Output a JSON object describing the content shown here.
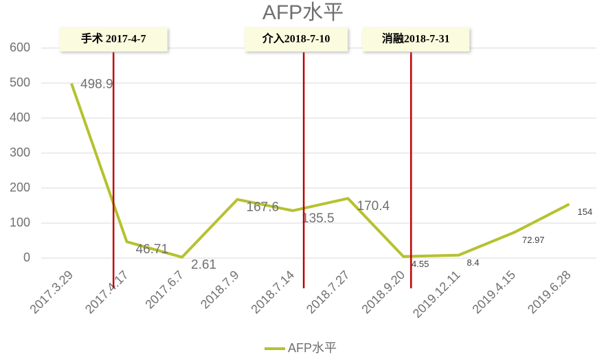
{
  "chart_data": {
    "type": "line",
    "title": "AFP水平",
    "categories": [
      "2017.3.29",
      "2017.4.17",
      "2017.6.7",
      "2018.7.9",
      "2018.7.14",
      "2018.7.27",
      "2018.9.20",
      "2019.12.11",
      "2019.4.15",
      "2019.6.28"
    ],
    "series": [
      {
        "name": "AFP水平",
        "color": "#b5c22f",
        "values": [
          498.9,
          46.71,
          2.61,
          167.6,
          135.5,
          170.4,
          4.55,
          8.4,
          72.97,
          154
        ]
      }
    ],
    "ylim": [
      0,
      600
    ],
    "yticks": [
      0,
      100,
      200,
      300,
      400,
      500,
      600
    ],
    "grid": true,
    "legend": "bottom",
    "annotations": [
      {
        "text": "手术 2017-4-7",
        "color": "#c00000"
      },
      {
        "text": "介入2018-7-10",
        "color": "#c00000"
      },
      {
        "text": "消融2018-7-31",
        "color": "#c00000"
      }
    ]
  }
}
